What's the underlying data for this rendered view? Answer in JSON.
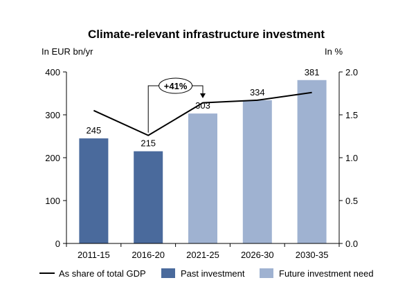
{
  "chart_data": {
    "type": "bar",
    "title": "Climate-relevant  infrastructure  investment",
    "y_left_label": "In EUR bn/yr",
    "y_right_label": "In %",
    "categories": [
      "2011-15",
      "2016-20",
      "2021-25",
      "2026-30",
      "2030-35"
    ],
    "values": [
      245,
      215,
      303,
      334,
      381
    ],
    "value_labels": [
      "245",
      "215",
      "303",
      "334",
      "381"
    ],
    "bar_series": [
      {
        "name": "Past investment",
        "color": "#4a6a9c",
        "indices": [
          0,
          1
        ]
      },
      {
        "name": "Future investment need",
        "color": "#9fb2d1",
        "indices": [
          2,
          3,
          4
        ]
      }
    ],
    "line_series": {
      "name": "As share of total GDP",
      "color": "#000000",
      "values": [
        1.55,
        1.26,
        1.64,
        1.67,
        1.76
      ]
    },
    "ylim_left": [
      0,
      400
    ],
    "yticks_left": [
      "0",
      "100",
      "200",
      "300",
      "400"
    ],
    "ylim_right": [
      0,
      2.0
    ],
    "yticks_right": [
      "0.0",
      "0.5",
      "1.0",
      "1.5",
      "2.0"
    ],
    "annotation": {
      "label": "+41%",
      "from_index": 1,
      "to_index": 2
    },
    "legend_position": "bottom",
    "grid": false
  }
}
